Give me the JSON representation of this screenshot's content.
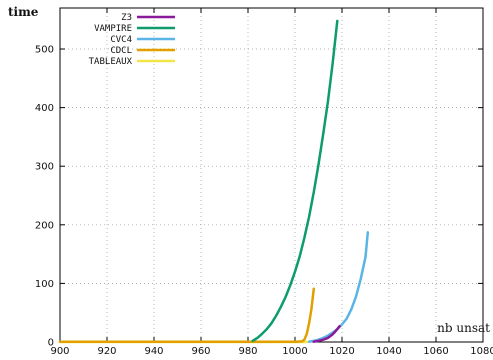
{
  "chart_data": {
    "type": "line",
    "ylabel": "time",
    "xlabel": "nb  unsat",
    "xlim": [
      900,
      1080
    ],
    "ylim": [
      0,
      570
    ],
    "xticks": [
      900,
      920,
      940,
      960,
      980,
      1000,
      1020,
      1040,
      1060,
      1080
    ],
    "yticks": [
      0,
      100,
      200,
      300,
      400,
      500
    ],
    "grid": true,
    "legend_position": "top-left",
    "series": [
      {
        "name": "Z3",
        "color": "#8b1a9a",
        "points": [
          [
            1008,
            0.5
          ],
          [
            1010,
            2
          ],
          [
            1012,
            4
          ],
          [
            1014,
            7
          ],
          [
            1015,
            10
          ],
          [
            1016,
            13
          ],
          [
            1017,
            17
          ],
          [
            1018,
            22
          ],
          [
            1019,
            27
          ]
        ]
      },
      {
        "name": "VAMPIRE",
        "color": "#0e9c6e",
        "points": [
          [
            982,
            2
          ],
          [
            984,
            7
          ],
          [
            986,
            14
          ],
          [
            988,
            22
          ],
          [
            990,
            32
          ],
          [
            992,
            45
          ],
          [
            994,
            60
          ],
          [
            996,
            77
          ],
          [
            998,
            97
          ],
          [
            1000,
            120
          ],
          [
            1002,
            146
          ],
          [
            1004,
            178
          ],
          [
            1006,
            214
          ],
          [
            1008,
            256
          ],
          [
            1010,
            303
          ],
          [
            1012,
            355
          ],
          [
            1014,
            410
          ],
          [
            1016,
            475
          ],
          [
            1018,
            548
          ]
        ]
      },
      {
        "name": "CVC4",
        "color": "#5ab4e5",
        "points": [
          [
            1006,
            0.5
          ],
          [
            1008,
            2
          ],
          [
            1010,
            4
          ],
          [
            1012,
            7
          ],
          [
            1014,
            11
          ],
          [
            1016,
            16
          ],
          [
            1018,
            22
          ],
          [
            1020,
            30
          ],
          [
            1022,
            40
          ],
          [
            1024,
            56
          ],
          [
            1026,
            78
          ],
          [
            1028,
            108
          ],
          [
            1030,
            145
          ],
          [
            1031,
            187
          ]
        ]
      },
      {
        "name": "CDCL",
        "color": "#e1a000",
        "points": [
          [
            900,
            0.3
          ],
          [
            1000,
            0.5
          ],
          [
            1003,
            1
          ],
          [
            1004,
            4
          ],
          [
            1005,
            14
          ],
          [
            1006,
            32
          ],
          [
            1007,
            56
          ],
          [
            1008,
            91
          ]
        ]
      },
      {
        "name": "TABLEAUX",
        "color": "#f2e54a",
        "points": [
          [
            900,
            0
          ],
          [
            1005,
            0
          ]
        ]
      }
    ]
  }
}
